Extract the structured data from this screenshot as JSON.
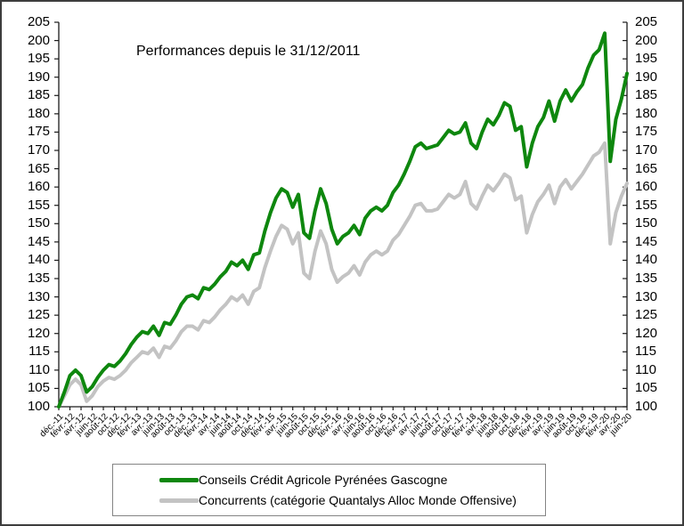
{
  "chart": {
    "title": "Performances depuis le 31/12/2011"
  },
  "chart_data": {
    "type": "line",
    "title": "Performances depuis le 31/12/2011",
    "x_interval": "monthly",
    "x_start_label": "déc.-11",
    "x_end_label": "juin-20",
    "n_points": 103,
    "ylim": [
      100,
      205
    ],
    "grid": false,
    "legend_position": "bottom",
    "y_ticks": [
      205,
      200,
      195,
      190,
      185,
      180,
      175,
      170,
      165,
      160,
      155,
      150,
      145,
      140,
      135,
      130,
      125,
      120,
      115,
      110,
      105,
      100
    ],
    "x_tick_labels": [
      "déc.-11",
      "févr.-12",
      "avr.-12",
      "juin-12",
      "août-12",
      "oct.-12",
      "déc.-12",
      "févr.-13",
      "avr.-13",
      "juin-13",
      "août-13",
      "oct.-13",
      "déc.-13",
      "févr.-14",
      "avr.-14",
      "juin-14",
      "août-14",
      "oct.-14",
      "déc.-14",
      "févr.-15",
      "avr.-15",
      "juin-15",
      "août-15",
      "oct.-15",
      "déc.-15",
      "févr.-16",
      "avr.-16",
      "juin-16",
      "août-16",
      "oct.-16",
      "déc.-16",
      "févr.-17",
      "avr.-17",
      "juin-17",
      "août-17",
      "oct.-17",
      "déc.-17",
      "févr.-18",
      "avr.-18",
      "juin-18",
      "août-18",
      "oct.-18",
      "déc.-18",
      "févr.-19",
      "avr.-19",
      "juin-19",
      "août-19",
      "oct.-19",
      "déc.-19",
      "févr.-20",
      "avr.-20",
      "juin-20"
    ],
    "series": [
      {
        "name": "Conseils Crédit Agricole Pyrénées Gascogne",
        "color": "#0e870e",
        "line_width": 4,
        "values": [
          100,
          104,
          108.5,
          110,
          108.5,
          104,
          105.5,
          108,
          110,
          111.5,
          111,
          112.5,
          114.5,
          117,
          119,
          120.5,
          120,
          122,
          119.5,
          123,
          122.5,
          125,
          128,
          130,
          130.5,
          129.5,
          132.5,
          132,
          133.5,
          135.5,
          137,
          139.5,
          138.5,
          140,
          137.5,
          141.5,
          142,
          148,
          153,
          157,
          159.5,
          158.5,
          154.5,
          158,
          147.5,
          146,
          153.5,
          159.5,
          155.5,
          148.5,
          144.5,
          146.5,
          147.5,
          149.5,
          147,
          151.5,
          153.5,
          154.5,
          153.5,
          155,
          158.5,
          160.5,
          163.5,
          167,
          171,
          172,
          170.5,
          171,
          171.5,
          173.5,
          175.5,
          174.5,
          175,
          177.5,
          172,
          170.5,
          175,
          178.5,
          177,
          179.5,
          183,
          182,
          175.5,
          176.5,
          165.5,
          172,
          176.5,
          179,
          183.5,
          178,
          183.5,
          186.5,
          183.5,
          186,
          188,
          192.5,
          196,
          197.5,
          202,
          167,
          178.5,
          184,
          191
        ]
      },
      {
        "name": "Concurrents (catégorie Quantalys Alloc Monde Offensive)",
        "color": "#c3c3c3",
        "line_width": 4,
        "values": [
          100,
          103,
          106,
          107.5,
          106,
          101.5,
          103,
          105.5,
          107,
          108,
          107.5,
          108.5,
          110,
          112,
          113.5,
          115,
          114.5,
          116,
          113.5,
          116.5,
          116,
          118,
          120.5,
          122,
          122,
          121,
          123.5,
          123,
          124.5,
          126.5,
          128,
          130,
          129,
          130.5,
          128,
          131.5,
          132.5,
          138,
          142.5,
          146.5,
          149.5,
          148.5,
          144.5,
          147.5,
          136.5,
          135,
          142.5,
          148,
          144.5,
          137.5,
          134,
          135.5,
          136.5,
          138.5,
          136,
          139.5,
          141.5,
          142.5,
          141.5,
          142.5,
          145.5,
          147,
          149.5,
          152,
          155,
          155.5,
          153.5,
          153.5,
          154,
          156,
          158,
          157,
          158,
          161.5,
          155.5,
          154,
          157.5,
          160.5,
          159,
          161,
          163.5,
          162.5,
          156.5,
          157.5,
          147.5,
          152.5,
          156,
          158,
          160.5,
          155.5,
          160,
          162,
          159.5,
          161.5,
          163.5,
          166,
          168.5,
          169.5,
          172,
          144.5,
          153,
          157.5,
          161
        ]
      }
    ]
  },
  "legend": {
    "items": [
      {
        "label": "Conseils Crédit Agricole Pyrénées Gascogne",
        "color": "#0e870e"
      },
      {
        "label": "Concurrents (catégorie Quantalys Alloc Monde Offensive)",
        "color": "#c3c3c3"
      }
    ]
  }
}
